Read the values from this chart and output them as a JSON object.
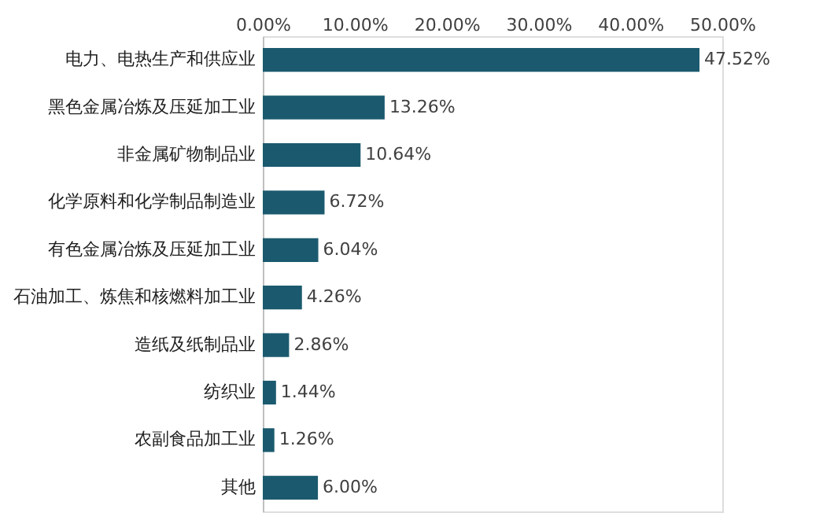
{
  "chart_data": {
    "type": "bar",
    "orientation": "horizontal",
    "categories": [
      "电力、电热生产和供应业",
      "黑色金属冶炼及压延加工业",
      "非金属矿物制品业",
      "化学原料和化学制品制造业",
      "有色金属冶炼及压延加工业",
      "石油加工、炼焦和核燃料加工业",
      "造纸及纸制品业",
      "纺织业",
      "农副食品加工业",
      "其他"
    ],
    "values": [
      47.52,
      13.26,
      10.64,
      6.72,
      6.04,
      4.26,
      2.86,
      1.44,
      1.26,
      6.0
    ],
    "value_labels": [
      "47.52%",
      "13.26%",
      "10.64%",
      "6.72%",
      "6.04%",
      "4.26%",
      "2.86%",
      "1.44%",
      "1.26%",
      "6.00%"
    ],
    "color": "#1b5a6e",
    "xlim": [
      0,
      50
    ],
    "xticks": [
      {
        "value": 0,
        "label": "0.00%"
      },
      {
        "value": 10,
        "label": "10.00%"
      },
      {
        "value": 20,
        "label": "20.00%"
      },
      {
        "value": 30,
        "label": "30.00%"
      },
      {
        "value": 40,
        "label": "40.00%"
      },
      {
        "value": 50,
        "label": "50.00%"
      }
    ],
    "grid": false
  }
}
